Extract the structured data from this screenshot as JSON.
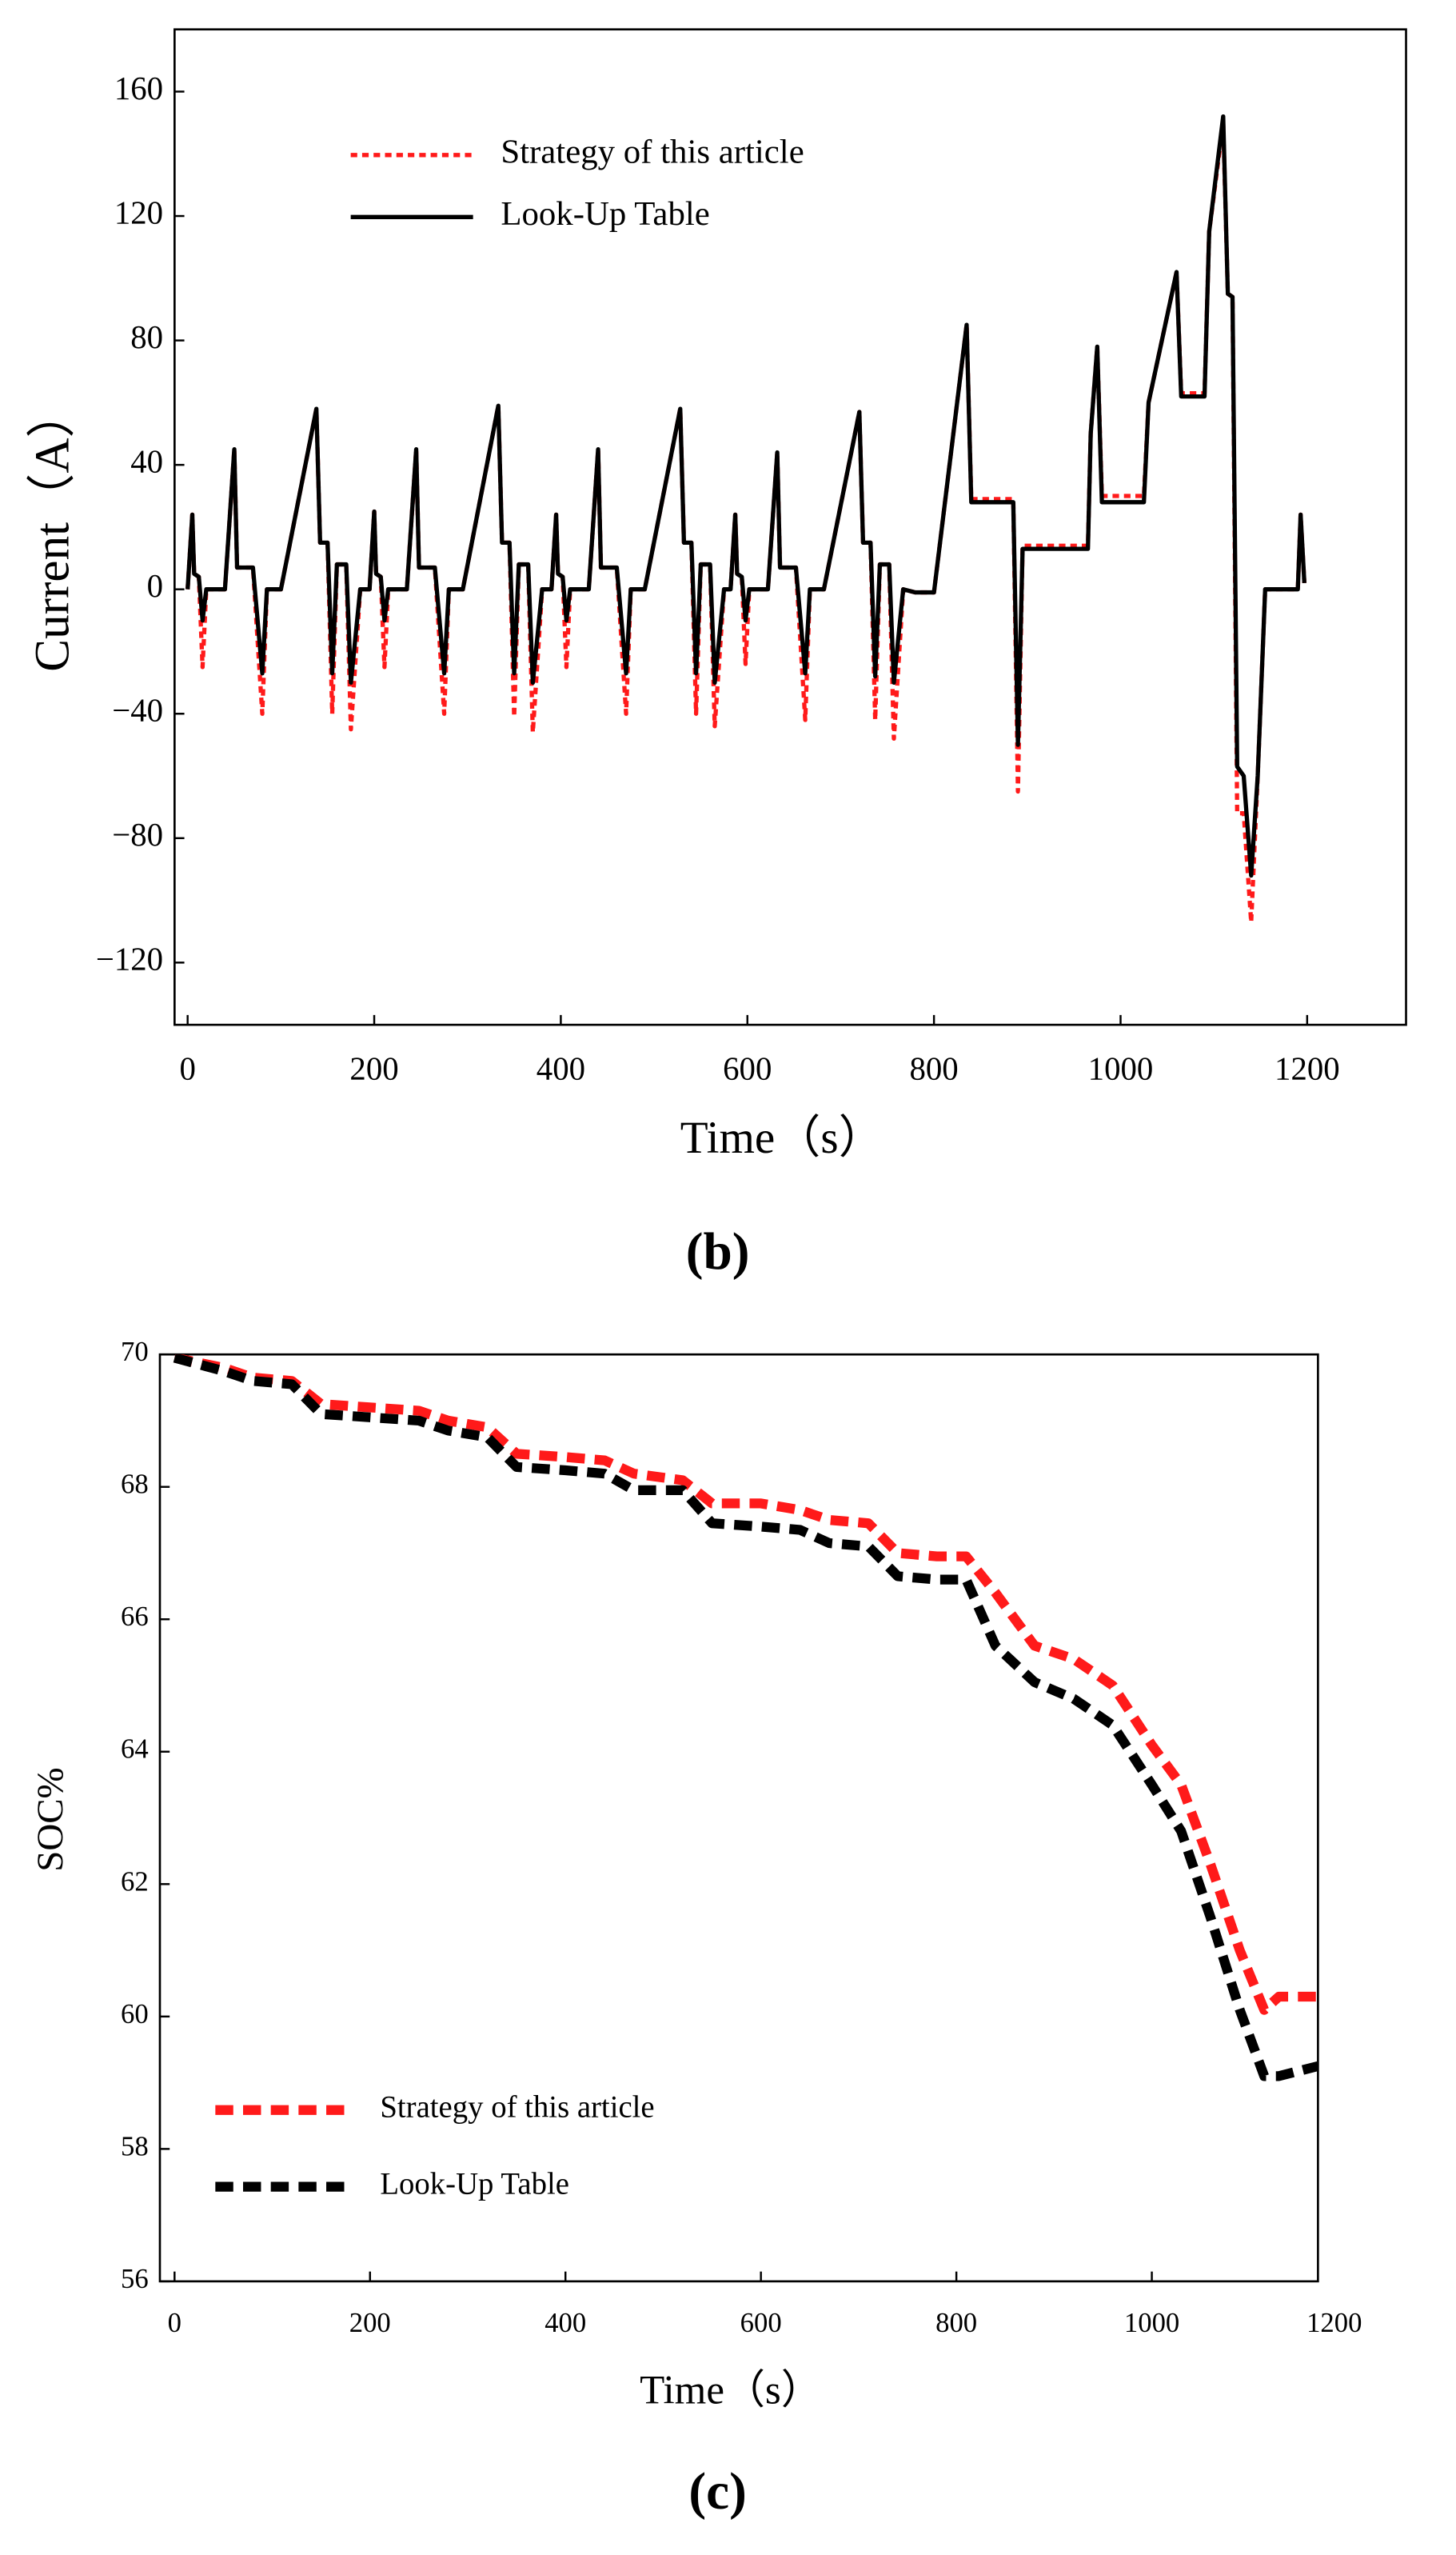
{
  "chart_data": [
    {
      "type": "line",
      "panel_label": "(b)",
      "xlabel": "Time（s）",
      "ylabel": "Current（A）",
      "xlim": [
        -14,
        1306
      ],
      "xticks": [
        0,
        200,
        400,
        600,
        800,
        1000,
        1200
      ],
      "ylim": [
        -140,
        180
      ],
      "yticks": [
        {
          "value": -120,
          "label": "−120"
        },
        {
          "value": -80,
          "label": "−80"
        },
        {
          "value": -40,
          "label": "−40"
        },
        0,
        40,
        80,
        120,
        160
      ],
      "legend": "upper left",
      "x": [
        0,
        5,
        7,
        12,
        16,
        20,
        40,
        50,
        53,
        70,
        80,
        85,
        100,
        138,
        142,
        150,
        155,
        160,
        170,
        175,
        185,
        195,
        200,
        202,
        207,
        211,
        215,
        235,
        245,
        248,
        265,
        275,
        280,
        295,
        333,
        337,
        345,
        350,
        355,
        365,
        370,
        380,
        390,
        395,
        397,
        402,
        406,
        410,
        430,
        440,
        443,
        460,
        470,
        475,
        490,
        528,
        532,
        540,
        545,
        550,
        560,
        565,
        575,
        582,
        587,
        589,
        594,
        598,
        602,
        622,
        632,
        635,
        652,
        662,
        667,
        682,
        720,
        724,
        732,
        737,
        742,
        752,
        757,
        767,
        780,
        800,
        835,
        840,
        885,
        890,
        895,
        965,
        968,
        975,
        980,
        1025,
        1030,
        1060,
        1065,
        1090,
        1095,
        1110,
        1115,
        1120,
        1125,
        1132,
        1140,
        1147,
        1155,
        1190,
        1193,
        1197
      ],
      "series": [
        {
          "name": "Strategy of this article",
          "color": "#ff1a1a",
          "line_style": "dotted",
          "values": [
            0,
            24,
            5,
            4,
            -25,
            0,
            0,
            45,
            7,
            7,
            -40,
            0,
            0,
            58,
            15,
            15,
            -40,
            8,
            8,
            -45,
            0,
            0,
            25,
            5,
            4,
            -25,
            0,
            0,
            45,
            7,
            7,
            -40,
            0,
            0,
            59,
            15,
            15,
            -41,
            8,
            8,
            -46,
            0,
            0,
            24,
            5,
            4,
            -25,
            0,
            0,
            45,
            7,
            7,
            -40,
            0,
            0,
            58,
            15,
            15,
            -40,
            8,
            8,
            -44,
            0,
            0,
            24,
            5,
            4,
            -24,
            0,
            0,
            44,
            7,
            7,
            -42,
            0,
            0,
            57,
            15,
            15,
            -42,
            8,
            8,
            -48,
            0,
            -1,
            -1,
            85,
            29,
            29,
            -65,
            14,
            14,
            50,
            78,
            30,
            30,
            60,
            102,
            63,
            63,
            115,
            150,
            95,
            94,
            -72,
            -72,
            -107,
            -60,
            0,
            0,
            24,
            2
          ]
        },
        {
          "name": "Look-Up Table",
          "color": "#000000",
          "line_style": "solid",
          "values": [
            0,
            24,
            5,
            4,
            -10,
            0,
            0,
            45,
            7,
            7,
            -27,
            0,
            0,
            58,
            15,
            15,
            -27,
            8,
            8,
            -30,
            0,
            0,
            25,
            5,
            4,
            -10,
            0,
            0,
            45,
            7,
            7,
            -27,
            0,
            0,
            59,
            15,
            15,
            -27,
            8,
            8,
            -30,
            0,
            0,
            24,
            5,
            4,
            -10,
            0,
            0,
            45,
            7,
            7,
            -27,
            0,
            0,
            58,
            15,
            15,
            -27,
            8,
            8,
            -30,
            0,
            0,
            24,
            5,
            4,
            -10,
            0,
            0,
            44,
            7,
            7,
            -27,
            0,
            0,
            57,
            15,
            15,
            -28,
            8,
            8,
            -30,
            0,
            -1,
            -1,
            85,
            28,
            28,
            -50,
            13,
            13,
            50,
            78,
            28,
            28,
            60,
            102,
            62,
            62,
            115,
            152,
            95,
            94,
            -57,
            -60,
            -92,
            -60,
            0,
            0,
            24,
            2
          ]
        }
      ]
    },
    {
      "type": "line",
      "panel_label": "(c)",
      "xlabel": "Time（s）",
      "ylabel": "SOC%",
      "xlim": [
        -15,
        1170
      ],
      "xticks": [
        0,
        200,
        400,
        600,
        800,
        1000,
        1200
      ],
      "ylim": [
        56,
        70
      ],
      "yticks": [
        56,
        58,
        60,
        62,
        64,
        66,
        68,
        70
      ],
      "legend": "lower left",
      "x": [
        0,
        50,
        80,
        120,
        150,
        200,
        250,
        280,
        320,
        350,
        400,
        440,
        470,
        520,
        550,
        600,
        640,
        670,
        710,
        740,
        780,
        810,
        840,
        880,
        920,
        960,
        1000,
        1030,
        1060,
        1090,
        1115,
        1130,
        1170
      ],
      "series": [
        {
          "name": "Strategy of this article",
          "color": "#ff1a1a",
          "line_style": "dashed",
          "values": [
            69.95,
            69.8,
            69.65,
            69.6,
            69.25,
            69.2,
            69.15,
            69.0,
            68.9,
            68.5,
            68.45,
            68.4,
            68.2,
            68.1,
            67.75,
            67.75,
            67.65,
            67.5,
            67.45,
            67.0,
            66.95,
            66.95,
            66.4,
            65.6,
            65.4,
            65.0,
            64.1,
            63.5,
            62.3,
            61.0,
            60.1,
            60.3,
            60.3
          ]
        },
        {
          "name": "Look-Up Table",
          "color": "#000000",
          "line_style": "dashed",
          "values": [
            69.95,
            69.75,
            69.6,
            69.55,
            69.1,
            69.05,
            69.0,
            68.85,
            68.75,
            68.3,
            68.25,
            68.2,
            67.95,
            67.95,
            67.45,
            67.4,
            67.35,
            67.15,
            67.1,
            66.65,
            66.6,
            66.6,
            65.6,
            65.05,
            64.8,
            64.4,
            63.5,
            62.8,
            61.5,
            60.1,
            59.1,
            59.1,
            59.25
          ]
        }
      ]
    }
  ]
}
